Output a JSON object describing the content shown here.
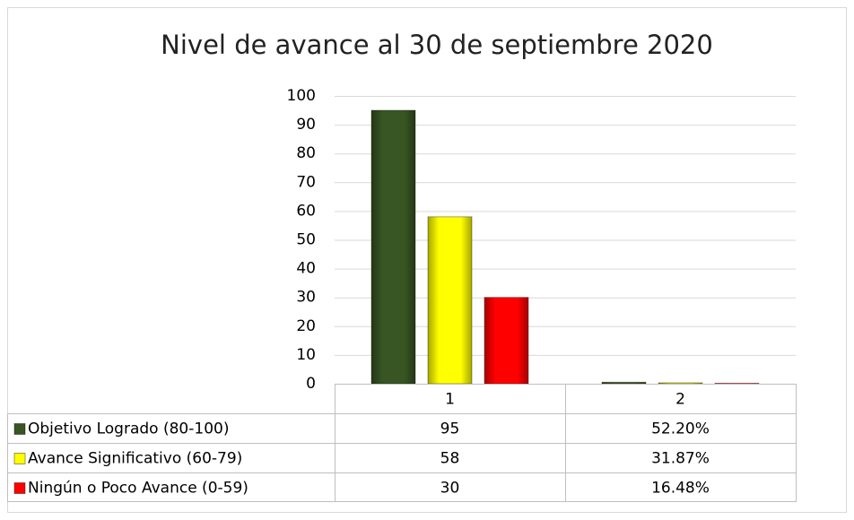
{
  "chart_data": {
    "type": "bar",
    "title": "Nivel de avance al 30 de septiembre 2020",
    "categories": [
      "1",
      "2"
    ],
    "series": [
      {
        "name": "Objetivo Logrado (80-100)",
        "color": "#375623",
        "values": [
          95,
          0.522
        ],
        "value_labels": [
          "95",
          "52.20%"
        ]
      },
      {
        "name": "Avance Significativo (60-79)",
        "color": "#ffff00",
        "values": [
          58,
          0.3187
        ],
        "value_labels": [
          "58",
          "31.87%"
        ]
      },
      {
        "name": "Ningún o Poco Avance (0-59)",
        "color": "#ff0000",
        "values": [
          30,
          0.1648
        ],
        "value_labels": [
          "30",
          "16.48%"
        ]
      }
    ],
    "ylim": [
      0,
      100
    ],
    "yticks": [
      0,
      10,
      20,
      30,
      40,
      50,
      60,
      70,
      80,
      90,
      100
    ],
    "grid": true,
    "data_table": true
  }
}
